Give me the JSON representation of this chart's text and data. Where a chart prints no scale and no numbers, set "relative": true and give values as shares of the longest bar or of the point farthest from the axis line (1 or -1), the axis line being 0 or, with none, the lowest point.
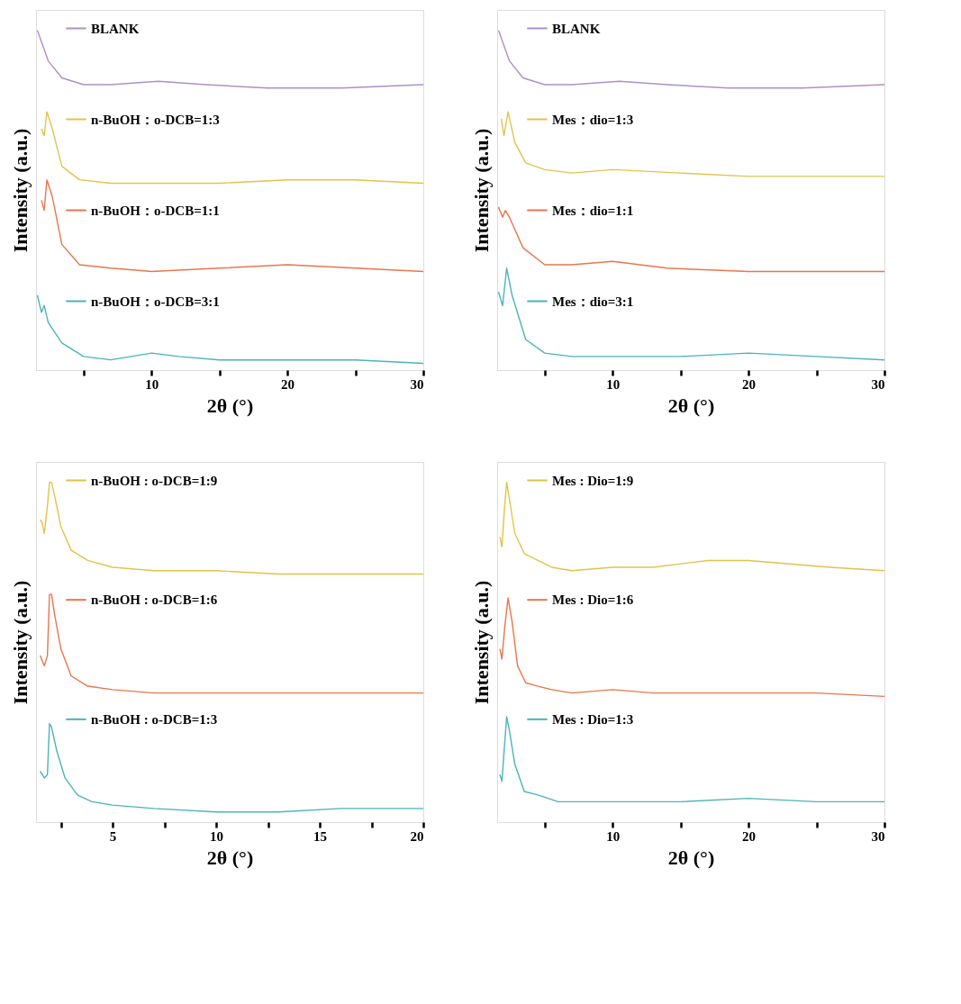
{
  "chart_data": [
    {
      "type": "line",
      "relative": true,
      "xlabel": "2θ (°)",
      "ylabel": "Intensity (a.u.)",
      "xlim": [
        1.5,
        30
      ],
      "xticks": [
        {
          "value": 5,
          "label": null
        },
        10,
        {
          "value": 15,
          "label": null
        },
        20,
        {
          "value": 25,
          "label": null
        },
        30
      ],
      "tick_labels": "x",
      "legend": "top left",
      "grid": false,
      "line_style": "solid",
      "marker": "none",
      "series": [
        {
          "name": "BLANK",
          "color": "#b08fc7",
          "x": [
            1.6,
            2.4,
            3.4,
            5,
            7,
            10.5,
            14,
            18.5,
            24,
            30
          ],
          "values": [
            1.0,
            0.91,
            0.86,
            0.84,
            0.84,
            0.85,
            0.84,
            0.83,
            0.83,
            0.84
          ]
        },
        {
          "name": "n-BuOH：o-DCB=1:3",
          "color": "#e2c34a",
          "x": [
            1.9,
            2.1,
            2.3,
            2.7,
            3.4,
            4.7,
            7,
            10,
            15,
            20,
            25,
            30
          ],
          "values": [
            0.71,
            0.69,
            0.76,
            0.71,
            0.6,
            0.56,
            0.55,
            0.55,
            0.55,
            0.56,
            0.56,
            0.55
          ]
        },
        {
          "name": "n-BuOH：o-DCB=1:1",
          "color": "#e8764f",
          "x": [
            1.9,
            2.1,
            2.3,
            2.7,
            3.4,
            4.7,
            7,
            10,
            15,
            20,
            25,
            30
          ],
          "values": [
            0.5,
            0.47,
            0.56,
            0.51,
            0.37,
            0.31,
            0.3,
            0.29,
            0.3,
            0.31,
            0.3,
            0.29
          ]
        },
        {
          "name": "n-BuOH：o-DCB=3:1",
          "color": "#4bb4ba",
          "x": [
            1.6,
            1.9,
            2.1,
            2.4,
            3.4,
            5,
            7,
            8.5,
            10,
            12,
            15,
            20,
            25,
            30
          ],
          "values": [
            0.22,
            0.17,
            0.19,
            0.14,
            0.08,
            0.04,
            0.03,
            0.04,
            0.05,
            0.04,
            0.03,
            0.03,
            0.03,
            0.02
          ]
        }
      ]
    },
    {
      "type": "line",
      "relative": true,
      "xlabel": "2θ (°)",
      "ylabel": "Intensity (a.u.)",
      "xlim": [
        1.5,
        30
      ],
      "xticks": [
        {
          "value": 5,
          "label": null
        },
        10,
        {
          "value": 15,
          "label": null
        },
        20,
        {
          "value": 25,
          "label": null
        },
        30
      ],
      "tick_labels": "x",
      "legend": "top left",
      "grid": false,
      "line_style": "solid",
      "marker": "none",
      "series": [
        {
          "name": "BLANK",
          "color": "#b08fc7",
          "x": [
            1.6,
            2.4,
            3.4,
            5,
            7,
            10.5,
            14,
            18.5,
            24,
            30
          ],
          "values": [
            1.0,
            0.91,
            0.86,
            0.84,
            0.84,
            0.85,
            0.84,
            0.83,
            0.83,
            0.84
          ]
        },
        {
          "name": "Mes：dio=1:3",
          "color": "#e2c34a",
          "x": [
            1.8,
            2.0,
            2.3,
            2.8,
            3.6,
            5,
            7,
            10,
            15,
            20,
            25,
            30
          ],
          "values": [
            0.74,
            0.69,
            0.76,
            0.67,
            0.61,
            0.59,
            0.58,
            0.59,
            0.58,
            0.57,
            0.57,
            0.57
          ]
        },
        {
          "name": "Mes：dio=1:1",
          "color": "#e8764f",
          "x": [
            1.6,
            1.9,
            2.1,
            2.4,
            3.4,
            5,
            7,
            10,
            14,
            20,
            25,
            30
          ],
          "values": [
            0.48,
            0.45,
            0.47,
            0.45,
            0.36,
            0.31,
            0.31,
            0.32,
            0.3,
            0.29,
            0.29,
            0.29
          ]
        },
        {
          "name": "Mes：dio=3:1",
          "color": "#4bb4ba",
          "x": [
            1.6,
            1.9,
            2.2,
            2.6,
            3.6,
            5,
            7,
            10,
            15,
            20,
            25,
            30
          ],
          "values": [
            0.23,
            0.19,
            0.3,
            0.22,
            0.09,
            0.05,
            0.04,
            0.04,
            0.04,
            0.05,
            0.04,
            0.03
          ]
        }
      ]
    },
    {
      "type": "line",
      "relative": true,
      "xlabel": "2θ (°)",
      "ylabel": "Intensity (a.u.)",
      "xlim": [
        1.3,
        20
      ],
      "xticks": [
        {
          "value": 2.5,
          "label": null
        },
        5,
        {
          "value": 7.5,
          "label": null
        },
        10,
        {
          "value": 12.5,
          "label": null
        },
        15,
        {
          "value": 17.5,
          "label": null
        },
        20
      ],
      "tick_labels": "x",
      "legend": "top left",
      "grid": false,
      "line_style": "solid",
      "marker": "none",
      "series": [
        {
          "name": "n-BuOH : o-DCB=1:9",
          "color": "#e2c34a",
          "x": [
            1.5,
            1.6,
            1.7,
            1.85,
            1.95,
            2.05,
            2.2,
            2.5,
            3,
            3.8,
            5,
            7,
            10,
            13,
            16,
            20
          ],
          "values": [
            0.89,
            0.88,
            0.85,
            0.93,
            1.0,
            1.0,
            0.96,
            0.87,
            0.8,
            0.77,
            0.75,
            0.74,
            0.74,
            0.73,
            0.73,
            0.73
          ]
        },
        {
          "name": "n-BuOH : o-DCB=1:6",
          "color": "#e8764f",
          "x": [
            1.5,
            1.7,
            1.85,
            1.95,
            2.05,
            2.2,
            2.5,
            3,
            3.8,
            5,
            7,
            10,
            13,
            16,
            20
          ],
          "values": [
            0.49,
            0.46,
            0.49,
            0.67,
            0.67,
            0.61,
            0.51,
            0.43,
            0.4,
            0.39,
            0.38,
            0.38,
            0.38,
            0.38,
            0.38
          ]
        },
        {
          "name": "n-BuOH : o-DCB=1:3",
          "color": "#4bb4ba",
          "x": [
            1.5,
            1.7,
            1.85,
            1.95,
            2.05,
            2.3,
            2.7,
            3.3,
            4,
            5,
            7,
            10,
            13,
            16,
            20
          ],
          "values": [
            0.15,
            0.13,
            0.14,
            0.29,
            0.28,
            0.21,
            0.13,
            0.08,
            0.06,
            0.05,
            0.04,
            0.03,
            0.03,
            0.04,
            0.04
          ]
        }
      ]
    },
    {
      "type": "line",
      "relative": true,
      "xlabel": "2θ (°)",
      "ylabel": "Intensity (a.u.)",
      "xlim": [
        1.5,
        30
      ],
      "xticks": [
        {
          "value": 5,
          "label": null
        },
        10,
        {
          "value": 15,
          "label": null
        },
        20,
        {
          "value": 25,
          "label": null
        },
        30
      ],
      "tick_labels": "x",
      "legend": "top left",
      "grid": false,
      "line_style": "solid",
      "marker": "none",
      "series": [
        {
          "name": "Mes : Dio=1:9",
          "color": "#e2c34a",
          "x": [
            1.7,
            1.85,
            2.05,
            2.2,
            2.4,
            2.8,
            3.5,
            4.5,
            5.5,
            7,
            10,
            13,
            17,
            20,
            23,
            26,
            30
          ],
          "values": [
            0.84,
            0.81,
            0.93,
            1.0,
            0.95,
            0.85,
            0.79,
            0.77,
            0.75,
            0.74,
            0.75,
            0.75,
            0.77,
            0.77,
            0.76,
            0.75,
            0.74
          ]
        },
        {
          "name": "Mes : Dio=1:6",
          "color": "#e8764f",
          "x": [
            1.7,
            1.85,
            2.05,
            2.3,
            2.6,
            3,
            3.6,
            4.5,
            5.5,
            7,
            10,
            13,
            17,
            20,
            25,
            30
          ],
          "values": [
            0.51,
            0.48,
            0.57,
            0.66,
            0.59,
            0.46,
            0.41,
            0.4,
            0.39,
            0.38,
            0.39,
            0.38,
            0.38,
            0.38,
            0.38,
            0.37
          ]
        },
        {
          "name": "Mes : Dio=1:3",
          "color": "#4bb4ba",
          "x": [
            1.7,
            1.85,
            2.05,
            2.2,
            2.4,
            2.8,
            3.5,
            4.5,
            6,
            10,
            15,
            20,
            25,
            30
          ],
          "values": [
            0.14,
            0.12,
            0.23,
            0.31,
            0.27,
            0.17,
            0.09,
            0.08,
            0.06,
            0.06,
            0.06,
            0.07,
            0.06,
            0.06
          ]
        }
      ]
    }
  ]
}
